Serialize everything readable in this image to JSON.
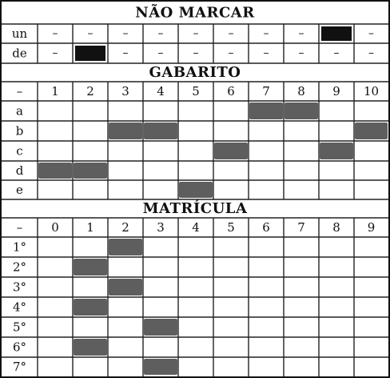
{
  "sections": {
    "nao_marcar": {
      "title": "NÃO MARCAR",
      "rows": [
        {
          "label": "un",
          "dash": "–",
          "marked_col": 8
        },
        {
          "label": "de",
          "dash": "–",
          "marked_col": 1
        }
      ]
    },
    "gabarito": {
      "title": "GABARITO",
      "corner": "–",
      "columns": [
        "1",
        "2",
        "3",
        "4",
        "5",
        "6",
        "7",
        "8",
        "9",
        "10"
      ],
      "rows": [
        "a",
        "b",
        "c",
        "d",
        "e"
      ],
      "marks": [
        {
          "row": "a",
          "cols": [
            7,
            8
          ]
        },
        {
          "row": "b",
          "cols": [
            3,
            4,
            10
          ]
        },
        {
          "row": "c",
          "cols": [
            6,
            9
          ]
        },
        {
          "row": "d",
          "cols": [
            1,
            2
          ]
        },
        {
          "row": "e",
          "cols": [
            5
          ]
        }
      ]
    },
    "matricula": {
      "title": "MATRÍCULA",
      "corner": "–",
      "columns": [
        "0",
        "1",
        "2",
        "3",
        "4",
        "5",
        "6",
        "7",
        "8",
        "9"
      ],
      "rows": [
        "1°",
        "2°",
        "3°",
        "4°",
        "5°",
        "6°",
        "7°"
      ],
      "marks": [
        {
          "row": "1°",
          "col": "2"
        },
        {
          "row": "2°",
          "col": "1"
        },
        {
          "row": "3°",
          "col": "2"
        },
        {
          "row": "4°",
          "col": "1"
        },
        {
          "row": "5°",
          "col": "3"
        },
        {
          "row": "6°",
          "col": "1"
        },
        {
          "row": "7°",
          "col": "3"
        }
      ]
    }
  },
  "colors": {
    "solid_mark": "#111111",
    "pencil_mark": "#555555",
    "grid": "#222222"
  }
}
